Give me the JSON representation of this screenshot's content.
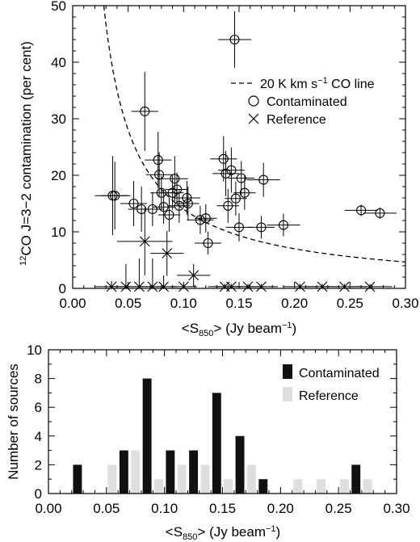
{
  "chart_data": [
    {
      "type": "scatter",
      "xlabel_main": "<S",
      "xlabel_sub": "850",
      "xlabel_rest": "> (Jy beam",
      "xlabel_sup": "−1",
      "xlabel_end": ")",
      "ylabel_sup": "12",
      "ylabel_main": "CO J=3−2 contamination (per cent)",
      "xlim": [
        0,
        0.3
      ],
      "ylim": [
        0,
        50
      ],
      "xticks": [
        "0.00",
        "0.05",
        "0.10",
        "0.15",
        "0.20",
        "0.25",
        "0.30"
      ],
      "xtick_values": [
        0,
        0.05,
        0.1,
        0.15,
        0.2,
        0.25,
        0.3
      ],
      "yticks": [
        "0",
        "10",
        "20",
        "30",
        "40",
        "50"
      ],
      "ytick_values": [
        0,
        10,
        20,
        30,
        40,
        50
      ],
      "legend": {
        "line_pre": "20 K km s",
        "line_sup": "−1",
        "line_post": " CO line",
        "contaminated": "Contaminated",
        "reference": "Reference",
        "placement": "right"
      },
      "curve": {
        "name": "20 K km s−1 CO line",
        "k": 1.4
      },
      "series": [
        {
          "name": "Contaminated",
          "marker": "circle",
          "points": [
            {
              "x": 0.036,
              "y": 16.4,
              "xe": 0.016,
              "ye": 7
            },
            {
              "x": 0.038,
              "y": 16.4,
              "xe": 0.012,
              "ye": 6
            },
            {
              "x": 0.055,
              "y": 15.0,
              "xe": 0.012,
              "ye": 4
            },
            {
              "x": 0.062,
              "y": 14.0,
              "xe": 0.012,
              "ye": 4
            },
            {
              "x": 0.065,
              "y": 31.3,
              "xe": 0.012,
              "ye": 7
            },
            {
              "x": 0.072,
              "y": 14.0,
              "xe": 0.01,
              "ye": 3
            },
            {
              "x": 0.077,
              "y": 22.7,
              "xe": 0.012,
              "ye": 5
            },
            {
              "x": 0.078,
              "y": 20.1,
              "xe": 0.012,
              "ye": 4
            },
            {
              "x": 0.08,
              "y": 16.9,
              "xe": 0.01,
              "ye": 3
            },
            {
              "x": 0.082,
              "y": 14.4,
              "xe": 0.01,
              "ye": 3
            },
            {
              "x": 0.087,
              "y": 13.0,
              "xe": 0.01,
              "ye": 3
            },
            {
              "x": 0.09,
              "y": 16.9,
              "xe": 0.01,
              "ye": 3
            },
            {
              "x": 0.092,
              "y": 19.4,
              "xe": 0.012,
              "ye": 4
            },
            {
              "x": 0.094,
              "y": 17.5,
              "xe": 0.01,
              "ye": 3
            },
            {
              "x": 0.096,
              "y": 14.6,
              "xe": 0.01,
              "ye": 3
            },
            {
              "x": 0.103,
              "y": 16.0,
              "xe": 0.012,
              "ye": 3
            },
            {
              "x": 0.104,
              "y": 15.0,
              "xe": 0.01,
              "ye": 3
            },
            {
              "x": 0.115,
              "y": 12.1,
              "xe": 0.012,
              "ye": 2.5
            },
            {
              "x": 0.12,
              "y": 12.4,
              "xe": 0.01,
              "ye": 2.5
            },
            {
              "x": 0.122,
              "y": 8.0,
              "xe": 0.012,
              "ye": 2
            },
            {
              "x": 0.136,
              "y": 22.9,
              "xe": 0.012,
              "ye": 4
            },
            {
              "x": 0.138,
              "y": 20.3,
              "xe": 0.012,
              "ye": 4
            },
            {
              "x": 0.14,
              "y": 14.6,
              "xe": 0.01,
              "ye": 3
            },
            {
              "x": 0.143,
              "y": 20.9,
              "xe": 0.012,
              "ye": 4
            },
            {
              "x": 0.146,
              "y": 44.0,
              "xe": 0.015,
              "ye": 5
            },
            {
              "x": 0.147,
              "y": 15.9,
              "xe": 0.01,
              "ye": 3
            },
            {
              "x": 0.15,
              "y": 10.8,
              "xe": 0.012,
              "ye": 2.5
            },
            {
              "x": 0.152,
              "y": 19.5,
              "xe": 0.012,
              "ye": 3
            },
            {
              "x": 0.155,
              "y": 16.9,
              "xe": 0.01,
              "ye": 3
            },
            {
              "x": 0.17,
              "y": 10.8,
              "xe": 0.012,
              "ye": 2
            },
            {
              "x": 0.172,
              "y": 19.2,
              "xe": 0.015,
              "ye": 3
            },
            {
              "x": 0.19,
              "y": 11.2,
              "xe": 0.015,
              "ye": 2
            },
            {
              "x": 0.26,
              "y": 13.8,
              "xe": 0.015,
              "ye": 1
            },
            {
              "x": 0.277,
              "y": 13.3,
              "xe": 0.015,
              "ye": 1
            }
          ]
        },
        {
          "name": "Reference",
          "marker": "cross",
          "points": [
            {
              "x": 0.065,
              "y": 8.3,
              "xe": 0.025,
              "ye": 6
            },
            {
              "x": 0.085,
              "y": 6.2,
              "xe": 0.015,
              "ye": 4
            },
            {
              "x": 0.109,
              "y": 2.3,
              "xe": 0.015,
              "ye": 2
            },
            {
              "x": 0.035,
              "y": 0.3,
              "xe": 0.015,
              "ye": 1
            },
            {
              "x": 0.048,
              "y": 0.3,
              "xe": 0.015,
              "ye": 4
            },
            {
              "x": 0.06,
              "y": 0.3,
              "xe": 0.012,
              "ye": 5
            },
            {
              "x": 0.072,
              "y": 0.3,
              "xe": 0.012,
              "ye": 5
            },
            {
              "x": 0.082,
              "y": 0.3,
              "xe": 0.012,
              "ye": 2
            },
            {
              "x": 0.1,
              "y": 0.3,
              "xe": 0.012,
              "ye": 0.5
            },
            {
              "x": 0.137,
              "y": 0.3,
              "xe": 0.015,
              "ye": 0.5
            },
            {
              "x": 0.143,
              "y": 0.3,
              "xe": 0.015,
              "ye": 0.5
            },
            {
              "x": 0.158,
              "y": 0.3,
              "xe": 0.015,
              "ye": 0.5
            },
            {
              "x": 0.17,
              "y": 0.3,
              "xe": 0.015,
              "ye": 0.5
            },
            {
              "x": 0.205,
              "y": 0.3,
              "xe": 0.015,
              "ye": 0.5
            },
            {
              "x": 0.225,
              "y": 0.3,
              "xe": 0.015,
              "ye": 0.5
            },
            {
              "x": 0.245,
              "y": 0.3,
              "xe": 0.02,
              "ye": 0.5
            },
            {
              "x": 0.268,
              "y": 0.3,
              "xe": 0.02,
              "ye": 0.5
            }
          ]
        }
      ]
    },
    {
      "type": "bar",
      "xlabel_main": "<S",
      "xlabel_sub": "850",
      "xlabel_rest": "> (Jy beam",
      "xlabel_sup": "−1",
      "xlabel_end": ")",
      "ylabel": "Number of sources",
      "xlim": [
        0,
        0.3
      ],
      "ylim": [
        0,
        10
      ],
      "xticks": [
        "0.00",
        "0.05",
        "0.10",
        "0.15",
        "0.20",
        "0.25",
        "0.30"
      ],
      "xtick_values": [
        0,
        0.05,
        0.1,
        0.15,
        0.2,
        0.25,
        0.3
      ],
      "yticks": [
        "0",
        "2",
        "4",
        "6",
        "8",
        "10"
      ],
      "ytick_values": [
        0,
        2,
        4,
        6,
        8,
        10
      ],
      "bin_width": 0.01,
      "legend": {
        "placement": "top-right"
      },
      "series": [
        {
          "name": "Contaminated",
          "color": "#111111",
          "bins": [
            0.02,
            0.06,
            0.08,
            0.1,
            0.12,
            0.14,
            0.16,
            0.18,
            0.26
          ],
          "counts": [
            2,
            3,
            8,
            3,
            3,
            7,
            4,
            1,
            2
          ]
        },
        {
          "name": "Reference",
          "color": "#dedede",
          "bins": [
            0.05,
            0.07,
            0.09,
            0.11,
            0.13,
            0.15,
            0.17,
            0.21,
            0.23,
            0.25,
            0.27
          ],
          "counts": [
            2,
            3,
            1,
            2,
            2,
            1,
            2,
            1,
            1,
            1,
            1
          ]
        }
      ]
    }
  ]
}
